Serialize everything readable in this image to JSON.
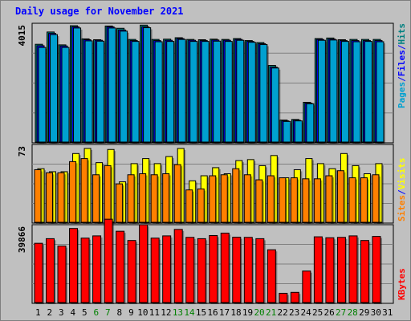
{
  "title": "Daily usage for November 2021",
  "colors": {
    "background": "#c0c0c0",
    "title": "#0000ff",
    "pages": "#00a0d0",
    "files": "#0000ff",
    "hits": "#008080",
    "sites": "#ff8000",
    "visits": "#ffff00",
    "kbytes": "#ff0000",
    "weekend_label": "#008000",
    "weekday_label": "#000000"
  },
  "chart_data": {
    "type": "bar",
    "days": [
      "1",
      "2",
      "3",
      "4",
      "5",
      "6",
      "7",
      "8",
      "9",
      "10",
      "11",
      "12",
      "13",
      "14",
      "15",
      "16",
      "17",
      "18",
      "19",
      "20",
      "21",
      "22",
      "23",
      "24",
      "25",
      "26",
      "27",
      "28",
      "29",
      "30",
      "31"
    ],
    "weekend_days": [
      "6",
      "7",
      "13",
      "14",
      "20",
      "21",
      "27",
      "28"
    ],
    "top_panel": {
      "axis_max_label": "4015",
      "ymax": 4015,
      "legend": [
        "Pages",
        "/",
        "Files",
        "/",
        "Hits"
      ],
      "series": [
        {
          "name": "Hits",
          "values": [
            3420,
            3850,
            3400,
            4070,
            3610,
            3580,
            4060,
            3980,
            3590,
            4090,
            3590,
            3600,
            3650,
            3590,
            3580,
            3600,
            3590,
            3620,
            3550,
            3480,
            2680,
            770,
            790,
            1390,
            3620,
            3640,
            3580,
            3590,
            3590,
            3590,
            null
          ]
        },
        {
          "name": "Files",
          "values": [
            3370,
            3800,
            3360,
            4030,
            3580,
            3560,
            4030,
            3920,
            3550,
            4030,
            3550,
            3560,
            3620,
            3560,
            3550,
            3570,
            3560,
            3590,
            3520,
            3440,
            2620,
            740,
            760,
            1360,
            3590,
            3600,
            3550,
            3550,
            3550,
            3550,
            null
          ]
        },
        {
          "name": "Pages",
          "values": [
            3310,
            3760,
            3310,
            3990,
            3540,
            3530,
            3990,
            3880,
            3520,
            4000,
            3510,
            3520,
            3590,
            3520,
            3520,
            3530,
            3520,
            3560,
            3490,
            3410,
            2590,
            720,
            740,
            1340,
            3560,
            3570,
            3520,
            3510,
            3520,
            3510,
            null
          ]
        }
      ]
    },
    "middle_panel": {
      "axis_max_label": "73",
      "ymax": 73,
      "legend": [
        "Sites",
        "/",
        "Visits"
      ],
      "series": [
        {
          "name": "Visits",
          "values": [
            53,
            50,
            50,
            68,
            73,
            59,
            72,
            40,
            58,
            63,
            58,
            65,
            73,
            41,
            46,
            54,
            48,
            61,
            62,
            56,
            66,
            44,
            52,
            63,
            58,
            53,
            68,
            56,
            48,
            58,
            null
          ]
        },
        {
          "name": "Sites",
          "values": [
            52,
            49,
            49,
            60,
            63,
            47,
            56,
            38,
            47,
            48,
            47,
            48,
            57,
            32,
            33,
            46,
            47,
            53,
            47,
            42,
            46,
            44,
            44,
            43,
            43,
            46,
            51,
            44,
            44,
            47,
            null
          ]
        }
      ]
    },
    "bottom_panel": {
      "axis_max_label": "39866",
      "ymax": 39866,
      "legend": [
        "KBytes"
      ],
      "series": [
        {
          "name": "KBytes",
          "values": [
            32000,
            34500,
            30500,
            40000,
            34800,
            36000,
            45000,
            38500,
            33500,
            42000,
            34800,
            36000,
            39500,
            35200,
            34500,
            36200,
            37500,
            35300,
            35200,
            34500,
            28500,
            5000,
            5500,
            17000,
            35500,
            35000,
            35200,
            36000,
            33500,
            35700,
            null
          ]
        }
      ]
    }
  }
}
